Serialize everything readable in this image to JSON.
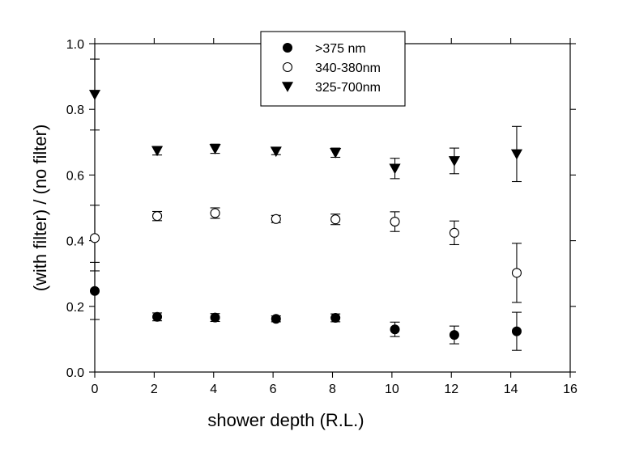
{
  "chart_data": {
    "type": "scatter",
    "title": "",
    "xlabel": "shower depth (R.L.)",
    "ylabel": "(with filter) / (no filter)",
    "xlim": [
      0,
      16
    ],
    "ylim": [
      0.0,
      1.0
    ],
    "x_ticks": [
      "0",
      "2",
      "4",
      "6",
      "8",
      "10",
      "12",
      "14",
      "16"
    ],
    "y_ticks": [
      "0.0",
      "0.2",
      "0.4",
      "0.6",
      "0.8",
      "1.0"
    ],
    "grid": false,
    "legend_position": "top-center",
    "series": [
      {
        "name": ">375 nm",
        "marker": "filled-circle",
        "color": "#000000",
        "x": [
          0,
          2.1,
          4.05,
          6.1,
          8.1,
          10.1,
          12.1,
          14.2
        ],
        "y": [
          0.247,
          0.168,
          0.166,
          0.162,
          0.165,
          0.13,
          0.113,
          0.124
        ],
        "err": [
          0.087,
          0.012,
          0.012,
          0.009,
          0.012,
          0.022,
          0.027,
          0.058
        ]
      },
      {
        "name": "340-380nm",
        "marker": "open-circle",
        "color": "#000000",
        "x": [
          0,
          2.1,
          4.05,
          6.1,
          8.1,
          10.1,
          12.1,
          14.2
        ],
        "y": [
          0.408,
          0.475,
          0.484,
          0.466,
          0.465,
          0.458,
          0.424,
          0.302
        ],
        "err": [
          0.1,
          0.014,
          0.016,
          0.011,
          0.016,
          0.03,
          0.036,
          0.09
        ]
      },
      {
        "name": "325-700nm",
        "marker": "filled-triangle-down",
        "color": "#000000",
        "x": [
          0,
          2.1,
          4.05,
          6.1,
          8.1,
          10.1,
          12.1,
          14.2
        ],
        "y": [
          0.845,
          0.674,
          0.68,
          0.672,
          0.668,
          0.62,
          0.643,
          0.664
        ],
        "err": [
          0.108,
          0.013,
          0.014,
          0.01,
          0.014,
          0.031,
          0.039,
          0.084
        ]
      }
    ]
  }
}
